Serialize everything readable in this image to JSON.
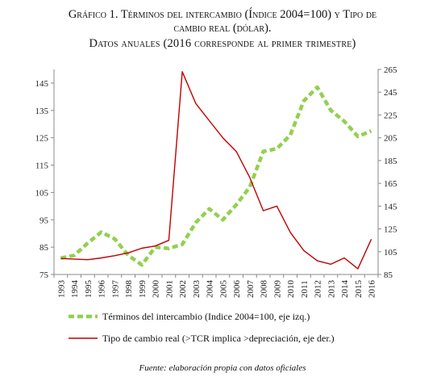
{
  "title": {
    "line1": "Gráfico 1. Términos del intercambio (Índice 2004=100) y Tipo de",
    "line2": "cambio real (dólar).",
    "line3": "Datos anuales  (2016 corresponde al primer trimestre)"
  },
  "source": "Fuente: elaboración propia con datos oficiales",
  "chart_data": {
    "type": "line",
    "x": [
      "1993",
      "1994",
      "1995",
      "1996",
      "1997",
      "1998",
      "1999",
      "2000",
      "2001",
      "2002",
      "2003",
      "2004",
      "2005",
      "2006",
      "2007",
      "2008",
      "2009",
      "2010",
      "2011",
      "2012",
      "2013",
      "2014",
      "2015",
      "2016"
    ],
    "series": [
      {
        "name": "Términos del intercambio (Indice 2004=100, eje izq.)",
        "axis": "left",
        "color": "#92d050",
        "style": "dashed",
        "values": [
          81,
          82,
          86.5,
          90.5,
          88,
          82,
          78.5,
          85,
          84.5,
          86,
          94,
          99,
          95,
          100.5,
          107,
          120,
          121,
          126,
          138.5,
          143.5,
          135,
          131,
          125.5,
          127.5
        ]
      },
      {
        "name": "Tipo de cambio real (>TCR implica >depreciación, eje der.)",
        "axis": "right",
        "color": "#c00000",
        "style": "solid",
        "values": [
          99,
          98.5,
          98,
          99.5,
          101.5,
          104,
          108,
          110,
          115,
          263,
          235,
          220,
          205,
          193,
          170,
          141,
          145,
          122,
          106,
          97,
          94,
          99.5,
          90,
          116
        ]
      }
    ],
    "y_left": {
      "ylim": [
        75,
        150
      ],
      "ticks": [
        75,
        85,
        95,
        105,
        115,
        125,
        135,
        145
      ]
    },
    "y_right": {
      "ylim": [
        85,
        265
      ],
      "ticks": [
        85,
        105,
        125,
        145,
        165,
        185,
        205,
        225,
        245,
        265
      ]
    },
    "grid": false,
    "legend": "bottom"
  }
}
